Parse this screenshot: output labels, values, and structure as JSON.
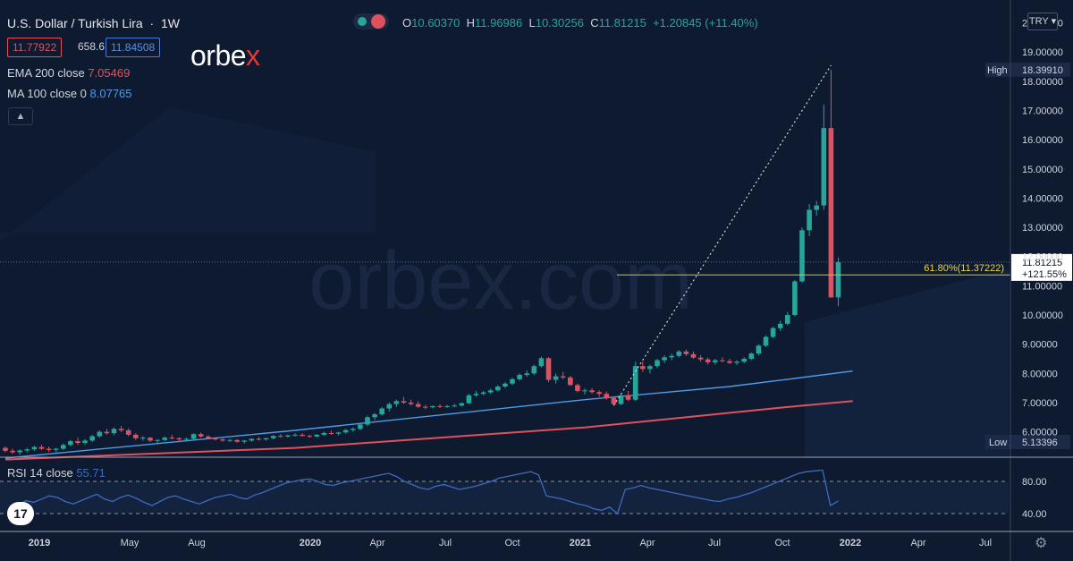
{
  "header": {
    "pair_title": "U.S. Dollar / Turkish Lira",
    "interval": "1W",
    "ohlc": {
      "o_label": "O",
      "o": "10.60370",
      "h_label": "H",
      "h": "11.96986",
      "l_label": "L",
      "l": "10.30256",
      "c_label": "C",
      "c": "11.81215",
      "change": "+1.20845 (+11.40%)"
    },
    "bid": "11.77922",
    "spread": "658.6",
    "ask": "11.84508",
    "currency": "TRY"
  },
  "indicators": {
    "ema": {
      "label": "EMA 200 close",
      "value": "7.05469",
      "color": "#e0515f"
    },
    "ma": {
      "label": "MA 100 close 0",
      "value": "8.07765",
      "color": "#4f9ce8"
    },
    "rsi": {
      "label": "RSI 14 close",
      "value": "55.71",
      "color": "#3d6bbf"
    }
  },
  "logo": {
    "text_main": "orbe",
    "text_x": "x"
  },
  "watermark": "orbex.com",
  "tv_logo": "17",
  "colors": {
    "up": "#26a69a",
    "down": "#e0515f",
    "bg": "#0e1a30"
  },
  "chart_data": {
    "type": "candlestick",
    "title": "U.S. Dollar / Turkish Lira",
    "price_axis": {
      "range": [
        5.1,
        20.6
      ],
      "ticks": [
        "6.00000",
        "7.00000",
        "8.00000",
        "9.00000",
        "10.00000",
        "11.00000",
        "12.00000",
        "13.00000",
        "14.00000",
        "15.00000",
        "16.00000",
        "17.00000",
        "18.00000",
        "19.00000",
        "20.00000"
      ]
    },
    "time_axis": {
      "labels": [
        "2019",
        "May",
        "Aug",
        "2020",
        "Apr",
        "Jul",
        "Oct",
        "2021",
        "Apr",
        "Jul",
        "Oct",
        "2022",
        "Apr",
        "Jul"
      ]
    },
    "markers": {
      "high": {
        "label": "High",
        "value": "18.39910"
      },
      "low": {
        "label": "Low",
        "value": "5.13396"
      },
      "last_price": "11.81215",
      "last_change": "+121.55%",
      "fib_label": "61.80%(11.37222)",
      "fib_level": 11.37222
    },
    "candles": [
      [
        5.45,
        5.5,
        5.3,
        5.35
      ],
      [
        5.35,
        5.42,
        5.25,
        5.3
      ],
      [
        5.3,
        5.4,
        5.22,
        5.36
      ],
      [
        5.36,
        5.45,
        5.3,
        5.4
      ],
      [
        5.4,
        5.52,
        5.35,
        5.48
      ],
      [
        5.48,
        5.55,
        5.38,
        5.42
      ],
      [
        5.42,
        5.5,
        5.32,
        5.38
      ],
      [
        5.38,
        5.45,
        5.3,
        5.42
      ],
      [
        5.42,
        5.6,
        5.38,
        5.55
      ],
      [
        5.55,
        5.72,
        5.5,
        5.68
      ],
      [
        5.68,
        5.8,
        5.55,
        5.62
      ],
      [
        5.62,
        5.75,
        5.55,
        5.7
      ],
      [
        5.7,
        5.9,
        5.65,
        5.85
      ],
      [
        5.85,
        6.05,
        5.8,
        6.0
      ],
      [
        6.0,
        6.1,
        5.9,
        5.95
      ],
      [
        5.95,
        6.15,
        5.88,
        6.1
      ],
      [
        6.1,
        6.2,
        5.98,
        6.05
      ],
      [
        6.05,
        6.12,
        5.85,
        5.9
      ],
      [
        5.9,
        5.95,
        5.72,
        5.78
      ],
      [
        5.78,
        5.85,
        5.7,
        5.8
      ],
      [
        5.8,
        5.82,
        5.65,
        5.7
      ],
      [
        5.7,
        5.75,
        5.62,
        5.72
      ],
      [
        5.72,
        5.85,
        5.68,
        5.8
      ],
      [
        5.8,
        5.9,
        5.74,
        5.78
      ],
      [
        5.78,
        5.82,
        5.7,
        5.74
      ],
      [
        5.74,
        5.8,
        5.68,
        5.76
      ],
      [
        5.76,
        5.95,
        5.72,
        5.92
      ],
      [
        5.92,
        5.98,
        5.8,
        5.84
      ],
      [
        5.84,
        5.88,
        5.74,
        5.78
      ],
      [
        5.78,
        5.82,
        5.7,
        5.74
      ],
      [
        5.74,
        5.78,
        5.66,
        5.7
      ],
      [
        5.7,
        5.76,
        5.65,
        5.72
      ],
      [
        5.72,
        5.75,
        5.62,
        5.66
      ],
      [
        5.66,
        5.72,
        5.6,
        5.7
      ],
      [
        5.7,
        5.78,
        5.66,
        5.76
      ],
      [
        5.76,
        5.82,
        5.7,
        5.74
      ],
      [
        5.74,
        5.8,
        5.7,
        5.78
      ],
      [
        5.78,
        5.88,
        5.74,
        5.86
      ],
      [
        5.86,
        5.92,
        5.8,
        5.84
      ],
      [
        5.84,
        5.9,
        5.8,
        5.88
      ],
      [
        5.88,
        5.95,
        5.84,
        5.9
      ],
      [
        5.9,
        5.95,
        5.84,
        5.86
      ],
      [
        5.86,
        5.9,
        5.8,
        5.84
      ],
      [
        5.84,
        5.92,
        5.8,
        5.9
      ],
      [
        5.9,
        6.0,
        5.86,
        5.96
      ],
      [
        5.96,
        6.04,
        5.9,
        5.94
      ],
      [
        5.94,
        6.0,
        5.88,
        5.98
      ],
      [
        5.98,
        6.1,
        5.94,
        6.06
      ],
      [
        6.06,
        6.15,
        6.0,
        6.1
      ],
      [
        6.1,
        6.3,
        6.05,
        6.25
      ],
      [
        6.25,
        6.55,
        6.2,
        6.5
      ],
      [
        6.5,
        6.65,
        6.4,
        6.6
      ],
      [
        6.6,
        6.85,
        6.55,
        6.8
      ],
      [
        6.8,
        7.0,
        6.7,
        6.95
      ],
      [
        6.95,
        7.1,
        6.85,
        7.05
      ],
      [
        7.05,
        7.2,
        6.95,
        7.0
      ],
      [
        7.0,
        7.1,
        6.9,
        6.95
      ],
      [
        6.95,
        7.05,
        6.82,
        6.86
      ],
      [
        6.86,
        6.92,
        6.78,
        6.84
      ],
      [
        6.84,
        6.9,
        6.8,
        6.88
      ],
      [
        6.88,
        6.94,
        6.82,
        6.86
      ],
      [
        6.86,
        6.92,
        6.82,
        6.88
      ],
      [
        6.88,
        6.96,
        6.84,
        6.9
      ],
      [
        6.9,
        7.0,
        6.86,
        6.98
      ],
      [
        6.98,
        7.3,
        6.95,
        7.25
      ],
      [
        7.25,
        7.4,
        7.2,
        7.3
      ],
      [
        7.3,
        7.4,
        7.25,
        7.35
      ],
      [
        7.35,
        7.48,
        7.3,
        7.42
      ],
      [
        7.42,
        7.6,
        7.38,
        7.55
      ],
      [
        7.55,
        7.7,
        7.5,
        7.65
      ],
      [
        7.65,
        7.85,
        7.6,
        7.8
      ],
      [
        7.8,
        8.0,
        7.75,
        7.95
      ],
      [
        7.95,
        8.1,
        7.88,
        8.0
      ],
      [
        8.0,
        8.3,
        7.95,
        8.25
      ],
      [
        8.25,
        8.58,
        8.2,
        8.52
      ],
      [
        8.52,
        8.56,
        7.7,
        7.78
      ],
      [
        7.78,
        8.0,
        7.65,
        7.9
      ],
      [
        7.9,
        8.05,
        7.8,
        7.86
      ],
      [
        7.86,
        7.92,
        7.58,
        7.6
      ],
      [
        7.6,
        7.65,
        7.35,
        7.4
      ],
      [
        7.4,
        7.48,
        7.28,
        7.42
      ],
      [
        7.42,
        7.5,
        7.3,
        7.36
      ],
      [
        7.36,
        7.42,
        7.2,
        7.3
      ],
      [
        7.3,
        7.38,
        7.1,
        7.16
      ],
      [
        7.16,
        7.22,
        6.9,
        6.95
      ],
      [
        6.95,
        7.3,
        6.92,
        7.25
      ],
      [
        7.25,
        7.4,
        7.05,
        7.1
      ],
      [
        7.1,
        8.4,
        7.05,
        8.25
      ],
      [
        8.25,
        8.4,
        8.05,
        8.15
      ],
      [
        8.15,
        8.3,
        8.0,
        8.25
      ],
      [
        8.25,
        8.5,
        8.18,
        8.45
      ],
      [
        8.45,
        8.62,
        8.35,
        8.55
      ],
      [
        8.55,
        8.68,
        8.45,
        8.6
      ],
      [
        8.6,
        8.8,
        8.55,
        8.75
      ],
      [
        8.75,
        8.82,
        8.6,
        8.66
      ],
      [
        8.66,
        8.75,
        8.5,
        8.54
      ],
      [
        8.54,
        8.62,
        8.4,
        8.48
      ],
      [
        8.48,
        8.55,
        8.3,
        8.38
      ],
      [
        8.38,
        8.5,
        8.3,
        8.45
      ],
      [
        8.45,
        8.55,
        8.38,
        8.42
      ],
      [
        8.42,
        8.5,
        8.32,
        8.36
      ],
      [
        8.36,
        8.45,
        8.28,
        8.4
      ],
      [
        8.4,
        8.55,
        8.35,
        8.5
      ],
      [
        8.5,
        8.72,
        8.45,
        8.68
      ],
      [
        8.68,
        9.0,
        8.62,
        8.95
      ],
      [
        8.95,
        9.3,
        8.9,
        9.25
      ],
      [
        9.25,
        9.6,
        9.2,
        9.55
      ],
      [
        9.55,
        9.8,
        9.45,
        9.7
      ],
      [
        9.7,
        10.1,
        9.65,
        10.0
      ],
      [
        10.0,
        11.2,
        9.95,
        11.15
      ],
      [
        11.15,
        13.0,
        11.1,
        12.9
      ],
      [
        12.9,
        13.8,
        12.7,
        13.6
      ],
      [
        13.6,
        13.9,
        13.4,
        13.75
      ],
      [
        13.75,
        17.2,
        13.6,
        16.4
      ],
      [
        16.4,
        18.39,
        10.6,
        10.6
      ],
      [
        10.6,
        11.97,
        10.3,
        11.81
      ]
    ],
    "ema200": [
      [
        0,
        5.05
      ],
      [
        40,
        5.45
      ],
      [
        80,
        6.15
      ],
      [
        100,
        6.65
      ],
      [
        108,
        6.85
      ],
      [
        117,
        7.05
      ]
    ],
    "ma100": [
      [
        0,
        5.1
      ],
      [
        40,
        6.05
      ],
      [
        80,
        7.1
      ],
      [
        100,
        7.55
      ],
      [
        108,
        7.8
      ],
      [
        117,
        8.08
      ]
    ],
    "rsi": {
      "range": [
        20,
        100
      ],
      "levels": [
        "80.00",
        "40.00"
      ],
      "level_values": [
        80,
        40
      ],
      "values": [
        50,
        56,
        54,
        58,
        62,
        60,
        55,
        52,
        56,
        60,
        64,
        58,
        55,
        60,
        63,
        59,
        54,
        50,
        55,
        60,
        62,
        58,
        55,
        52,
        56,
        60,
        62,
        64,
        60,
        58,
        63,
        66,
        70,
        74,
        78,
        80,
        82,
        83,
        80,
        76,
        75,
        78,
        80,
        82,
        84,
        86,
        88,
        90,
        86,
        80,
        76,
        72,
        70,
        74,
        76,
        73,
        70,
        72,
        74,
        77,
        80,
        84,
        86,
        88,
        90,
        92,
        88,
        62,
        60,
        58,
        55,
        52,
        50,
        46,
        44,
        48,
        40,
        70,
        72,
        75,
        72,
        70,
        68,
        66,
        64,
        62,
        60,
        58,
        56,
        55,
        58,
        60,
        63,
        66,
        70,
        74,
        78,
        82,
        86,
        90,
        92,
        93,
        94,
        50,
        55.71
      ]
    }
  }
}
